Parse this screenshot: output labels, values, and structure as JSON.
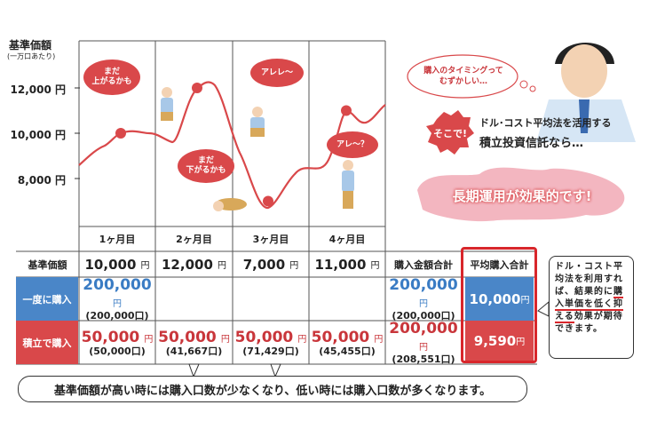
{
  "chart": {
    "ylabel": "基準価額",
    "ylabel_sub": "(一万口あたり)",
    "yticks": [
      "12,000 円",
      "10,000 円",
      "8,000 円"
    ],
    "months": [
      "1ヶ月目",
      "2ヶ月目",
      "3ヶ月目",
      "4ヶ月目"
    ],
    "bubbles": {
      "b1": "まだ\n上がるかも",
      "b2": "まだ\n下がるかも",
      "b3": "アレレ〜",
      "b4": "アレ〜？"
    },
    "colors": {
      "line": "#d9484a",
      "grid": "#555555"
    }
  },
  "chart_data": {
    "type": "line",
    "title": "",
    "ylabel": "基準価額",
    "ylim": [
      7000,
      13000
    ],
    "categories": [
      "1ヶ月目",
      "2ヶ月目",
      "3ヶ月目",
      "4ヶ月目"
    ],
    "series": [
      {
        "values": [
          10000,
          12000,
          7000,
          11000
        ]
      }
    ]
  },
  "right_panel": {
    "thought": "購入のタイミングって\nむずかしい…",
    "sokode": "そこで!",
    "method_line1": "ドル･コスト平均法を活用する",
    "method_line2": "積立投資信託なら…",
    "effective": "長期運用が効果的です!"
  },
  "table": {
    "row_header_label": "基準価額",
    "prices": [
      "10,000",
      "12,000",
      "7,000",
      "11,000"
    ],
    "price_unit": "円",
    "total_header": "購入金額合計",
    "avg_header": "平均購入合計",
    "lump": {
      "label": "一度に購入",
      "amount": "200,000",
      "units": "(200,000口)",
      "total": "200,000",
      "total_units": "(200,000口)",
      "avg": "10,000"
    },
    "dca": {
      "label": "積立で購入",
      "amounts": [
        "50,000",
        "50,000",
        "50,000",
        "50,000"
      ],
      "units": [
        "(50,000口)",
        "(41,667口)",
        "(71,429口)",
        "(45,455口)"
      ],
      "total": "200,000",
      "total_units": "(208,551口)",
      "avg": "9,590"
    },
    "yen": "円"
  },
  "note": {
    "pre": "ドル・コスト平均法を利用すれば、結果的に",
    "u1": "購入単価",
    "u2": "を低く抑える",
    "post": "効果が期待できます。"
  },
  "summary": "基準価額が高い時には購入口数が少なくなり、低い時には購入口数が多くなります。"
}
